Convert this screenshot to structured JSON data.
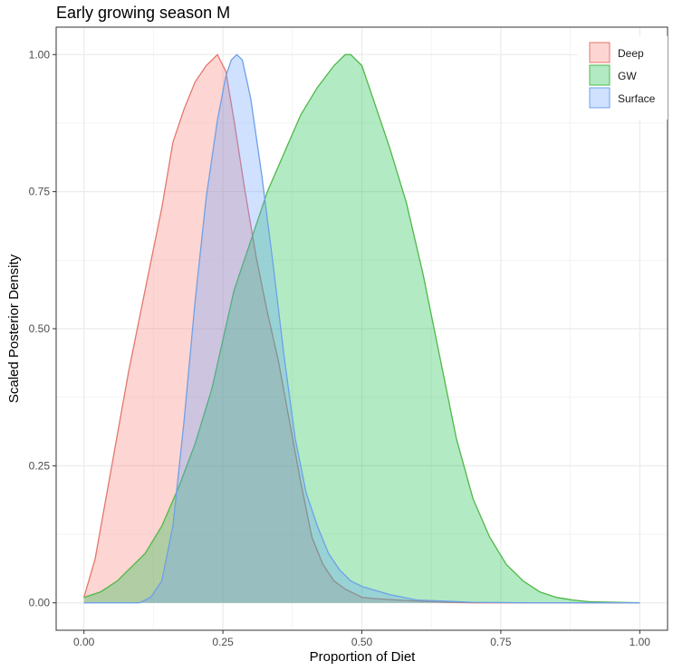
{
  "chart_data": {
    "type": "area",
    "title": "Early growing season M",
    "xlabel": "Proportion of Diet",
    "ylabel": "Scaled Posterior Density",
    "xlim": [
      -0.05,
      1.05
    ],
    "ylim": [
      -0.05,
      1.05
    ],
    "x_ticks": [
      0.0,
      0.25,
      0.5,
      0.75,
      1.0
    ],
    "x_tick_labels": [
      "0.00",
      "0.25",
      "0.50",
      "0.75",
      "1.00"
    ],
    "y_ticks": [
      0.0,
      0.25,
      0.5,
      0.75,
      1.0
    ],
    "y_tick_labels": [
      "0.00",
      "0.25",
      "0.50",
      "0.75",
      "1.00"
    ],
    "grid": true,
    "legend_position": "top-right",
    "series": [
      {
        "name": "Deep",
        "line_color": "#e5766e",
        "fill_color": "#f8766d",
        "x": [
          0.0,
          0.02,
          0.05,
          0.08,
          0.1,
          0.12,
          0.14,
          0.16,
          0.18,
          0.2,
          0.22,
          0.24,
          0.255,
          0.27,
          0.29,
          0.31,
          0.33,
          0.35,
          0.37,
          0.39,
          0.41,
          0.43,
          0.45,
          0.47,
          0.49,
          0.5,
          0.52,
          0.55,
          0.6,
          0.65,
          0.7,
          0.75,
          0.8,
          1.0
        ],
        "values": [
          0.01,
          0.08,
          0.25,
          0.42,
          0.52,
          0.62,
          0.72,
          0.84,
          0.9,
          0.95,
          0.98,
          1.0,
          0.97,
          0.88,
          0.75,
          0.63,
          0.53,
          0.44,
          0.33,
          0.22,
          0.12,
          0.07,
          0.04,
          0.025,
          0.015,
          0.01,
          0.008,
          0.006,
          0.003,
          0.001,
          0.0,
          0.0,
          0.0,
          0.0
        ]
      },
      {
        "name": "GW",
        "line_color": "#4fb848",
        "fill_color": "#00ba38",
        "x": [
          0.0,
          0.03,
          0.06,
          0.09,
          0.11,
          0.14,
          0.17,
          0.2,
          0.23,
          0.25,
          0.27,
          0.3,
          0.33,
          0.36,
          0.39,
          0.42,
          0.45,
          0.47,
          0.48,
          0.5,
          0.52,
          0.55,
          0.58,
          0.61,
          0.64,
          0.67,
          0.7,
          0.73,
          0.76,
          0.79,
          0.82,
          0.85,
          0.88,
          0.91,
          1.0
        ],
        "values": [
          0.01,
          0.02,
          0.04,
          0.07,
          0.09,
          0.14,
          0.21,
          0.29,
          0.39,
          0.48,
          0.57,
          0.66,
          0.75,
          0.82,
          0.89,
          0.94,
          0.98,
          1.0,
          1.0,
          0.98,
          0.92,
          0.83,
          0.73,
          0.6,
          0.45,
          0.3,
          0.19,
          0.12,
          0.07,
          0.04,
          0.02,
          0.01,
          0.005,
          0.002,
          0.0
        ]
      },
      {
        "name": "Surface",
        "line_color": "#6ea0e8",
        "fill_color": "#619cff",
        "x": [
          0.0,
          0.05,
          0.1,
          0.12,
          0.14,
          0.16,
          0.18,
          0.2,
          0.22,
          0.24,
          0.255,
          0.265,
          0.275,
          0.285,
          0.3,
          0.32,
          0.34,
          0.36,
          0.38,
          0.4,
          0.42,
          0.44,
          0.46,
          0.48,
          0.5,
          0.55,
          0.6,
          0.7,
          0.8,
          1.0
        ],
        "values": [
          0.0,
          0.0,
          0.0,
          0.01,
          0.04,
          0.14,
          0.33,
          0.55,
          0.74,
          0.88,
          0.96,
          0.99,
          1.0,
          0.99,
          0.92,
          0.78,
          0.62,
          0.45,
          0.3,
          0.2,
          0.14,
          0.09,
          0.06,
          0.04,
          0.03,
          0.015,
          0.005,
          0.001,
          0.0,
          0.0
        ]
      }
    ]
  }
}
